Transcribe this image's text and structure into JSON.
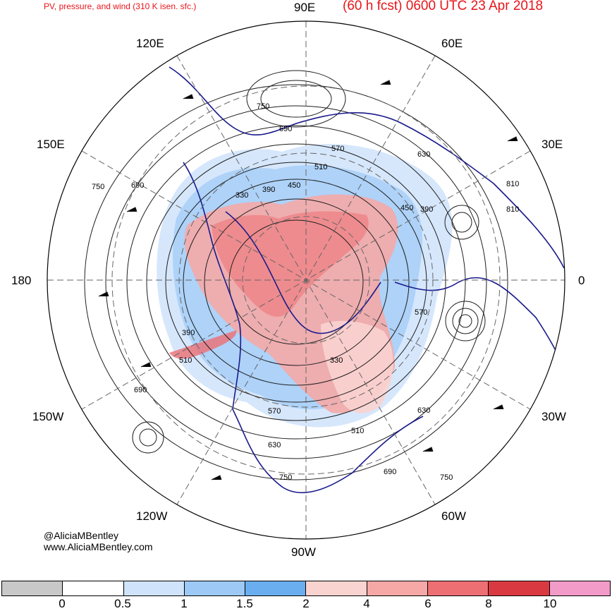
{
  "header": {
    "left_title": "PV, pressure, and wind (310 K isen. sfc.)",
    "right_title": "(60 h fcst) 0600 UTC 23 Apr 2018"
  },
  "longitude_labels": [
    "90E",
    "60E",
    "30E",
    "0",
    "30W",
    "60W",
    "90W",
    "120W",
    "150W",
    "180",
    "150E",
    "120E"
  ],
  "contour_labels": [
    "750",
    "690",
    "630",
    "570",
    "510",
    "450",
    "390",
    "810",
    "330"
  ],
  "credit": {
    "handle": "@AliciaMBentley",
    "website": "www.AliciaMBentley.com"
  },
  "colorbar": {
    "labels": [
      "0",
      "0.5",
      "1",
      "1.5",
      "2",
      "4",
      "6",
      "8",
      "10"
    ],
    "colors": [
      "#c8c8c8",
      "#ffffff",
      "#cfe3fb",
      "#9dc9f6",
      "#6aaef0",
      "#f9d3d0",
      "#f5a8a6",
      "#ee6f73",
      "#d93a42",
      "#f29bc8"
    ]
  },
  "colors": {
    "title": "#e8151b",
    "coastline": "#1a1a8c",
    "contour": "#1e1e1e",
    "grid": "#666666"
  }
}
